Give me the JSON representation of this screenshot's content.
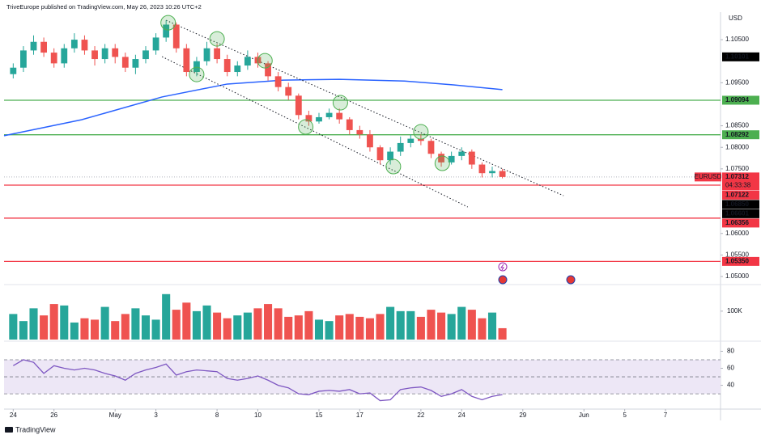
{
  "header": {
    "publisher": "TriveEurope published on TradingView.com, May 26, 2023 10:26 UTC+2",
    "currency": "USD",
    "brand": "TradingView"
  },
  "chart_data": [
    {
      "type": "candlestick",
      "symbol": "EURUSD",
      "up_color": "#26a69a",
      "down_color": "#ef5350",
      "x": [
        0,
        1,
        2,
        3,
        4,
        5,
        6,
        7,
        8,
        9,
        10,
        11,
        12,
        13,
        14,
        15,
        16,
        17,
        18,
        19,
        20,
        21,
        22,
        23,
        24,
        25,
        26,
        27,
        28,
        29,
        30,
        31,
        32,
        33,
        34,
        35,
        36,
        37,
        38,
        39,
        40,
        41,
        42,
        43,
        44,
        45,
        46,
        47,
        48
      ],
      "open": [
        1.097,
        1.0985,
        1.1025,
        1.1045,
        1.102,
        1.0995,
        1.103,
        1.105,
        1.1025,
        1.1005,
        1.103,
        1.101,
        1.0985,
        1.1005,
        1.1025,
        1.1055,
        1.1085,
        1.103,
        1.0975,
        1.1,
        1.103,
        1.1005,
        1.0975,
        1.099,
        1.101,
        1.0995,
        1.0965,
        1.094,
        1.092,
        1.0875,
        1.086,
        1.087,
        1.088,
        1.0865,
        1.084,
        1.083,
        1.08,
        1.077,
        1.079,
        1.081,
        1.082,
        1.0815,
        1.0785,
        1.0765,
        1.078,
        1.079,
        1.076,
        1.074,
        1.0745
      ],
      "high": [
        1.0995,
        1.1035,
        1.106,
        1.1055,
        1.103,
        1.104,
        1.1065,
        1.106,
        1.1035,
        1.104,
        1.104,
        1.102,
        1.1015,
        1.1035,
        1.1065,
        1.1095,
        1.109,
        1.104,
        1.101,
        1.1045,
        1.104,
        1.1015,
        1.1,
        1.1025,
        1.102,
        1.1,
        1.0975,
        1.095,
        1.0925,
        1.0885,
        1.088,
        1.089,
        1.089,
        1.087,
        1.085,
        1.084,
        1.0805,
        1.08,
        1.0825,
        1.083,
        1.083,
        1.082,
        1.079,
        1.079,
        1.08,
        1.0795,
        1.0765,
        1.0755,
        1.075
      ],
      "low": [
        1.096,
        1.0975,
        1.1015,
        1.101,
        1.0985,
        1.0985,
        1.102,
        1.1015,
        1.099,
        1.0995,
        1.0995,
        1.0975,
        1.097,
        1.0995,
        1.1015,
        1.1045,
        1.102,
        1.0965,
        1.0965,
        1.099,
        1.0995,
        1.0965,
        1.0965,
        1.098,
        1.0985,
        1.0955,
        1.093,
        1.091,
        1.0865,
        1.085,
        1.0855,
        1.0865,
        1.0855,
        1.083,
        1.082,
        1.079,
        1.076,
        1.076,
        1.078,
        1.08,
        1.0805,
        1.0775,
        1.0755,
        1.076,
        1.077,
        1.075,
        1.073,
        1.073,
        1.0728
      ],
      "close": [
        1.0985,
        1.1025,
        1.1045,
        1.102,
        1.0995,
        1.103,
        1.105,
        1.1025,
        1.1005,
        1.103,
        1.101,
        1.0985,
        1.1005,
        1.1025,
        1.1055,
        1.1085,
        1.103,
        1.0975,
        1.1,
        1.103,
        1.1005,
        1.0975,
        1.099,
        1.101,
        1.0995,
        1.0965,
        1.094,
        1.092,
        1.0875,
        1.086,
        1.087,
        1.088,
        1.0865,
        1.084,
        1.083,
        1.08,
        1.077,
        1.079,
        1.081,
        1.082,
        1.0815,
        1.0785,
        1.0765,
        1.078,
        1.079,
        1.076,
        1.074,
        1.0745,
        1.07312
      ],
      "xlim": [
        -0.9,
        69.4
      ],
      "ylim": [
        1.0485,
        1.1114
      ],
      "xticks": [
        {
          "value": 0,
          "label": "24"
        },
        {
          "value": 4,
          "label": "26"
        },
        {
          "value": 10,
          "label": "May"
        },
        {
          "value": 14,
          "label": "3"
        },
        {
          "value": 20,
          "label": "8"
        },
        {
          "value": 24,
          "label": "10"
        },
        {
          "value": 30,
          "label": "15"
        },
        {
          "value": 34,
          "label": "17"
        },
        {
          "value": 40,
          "label": "22"
        },
        {
          "value": 44,
          "label": "24"
        },
        {
          "value": 50,
          "label": "29"
        },
        {
          "value": 56,
          "label": "Jun"
        },
        {
          "value": 60,
          "label": "5"
        },
        {
          "value": 64,
          "label": "7"
        }
      ],
      "yticks": [
        {
          "value": 1.105,
          "label": "1.10500"
        },
        {
          "value": 1.095,
          "label": "1.09500"
        },
        {
          "value": 1.085,
          "label": "1.08500"
        },
        {
          "value": 1.08,
          "label": "1.08000"
        },
        {
          "value": 1.075,
          "label": "1.07500"
        },
        {
          "value": 1.06,
          "label": "1.06000"
        },
        {
          "value": 1.055,
          "label": "1.05500"
        },
        {
          "value": 1.05,
          "label": "1.05000"
        }
      ],
      "moving_average": {
        "color": "#2962ff",
        "x": [
          -0.9,
          6.7,
          14.6,
          21,
          26.5,
          32,
          38.4,
          43.2,
          48
        ],
        "values": [
          1.0827,
          1.0864,
          1.0917,
          1.0947,
          1.0956,
          1.0958,
          1.0954,
          1.0945,
          1.0934
        ]
      },
      "levels": [
        {
          "value": 1.09094,
          "label": "1.09094",
          "color": "#4caf50"
        },
        {
          "value": 1.08292,
          "label": "1.08292",
          "color": "#4caf50"
        },
        {
          "value": 1.07122,
          "label": "1.07122",
          "color": "#f23645"
        },
        {
          "value": 1.06356,
          "label": "1.06356",
          "color": "#f23645"
        },
        {
          "value": 1.0535,
          "label": "1.05350",
          "color": "#f23645"
        }
      ],
      "price_labels": [
        {
          "value": 1.10101,
          "label": "1.10101",
          "color": "#000000"
        },
        {
          "value": 1.0685,
          "label": "1.06850",
          "color": "#000000"
        },
        {
          "value": 1.06601,
          "label": "1.06601",
          "color": "#000000"
        }
      ],
      "last_price": {
        "value": 1.07312,
        "label": "1.07312",
        "countdown": "04:33:38",
        "color": "#f23645"
      },
      "channel": [
        {
          "x": [
            15,
            54
          ],
          "values": [
            1.1095,
            1.06877
          ]
        },
        {
          "x": [
            14.6,
            44.6
          ],
          "values": [
            1.10106,
            1.06614
          ]
        }
      ],
      "touch_points": {
        "color": "#4caf50",
        "x": [
          15.2,
          20,
          24.7,
          32.1,
          40,
          42.1,
          37.3,
          28.7,
          18
        ],
        "values": [
          1.10894,
          1.10519,
          1.10012,
          1.09036,
          1.0836,
          1.07628,
          1.07553,
          1.08473,
          1.09693
        ]
      }
    },
    {
      "type": "bar",
      "values": [
        90000,
        65000,
        110000,
        85000,
        125000,
        120000,
        60000,
        75000,
        70000,
        115000,
        65000,
        90000,
        110000,
        85000,
        70000,
        160000,
        105000,
        130000,
        100000,
        120000,
        95000,
        75000,
        85000,
        95000,
        110000,
        125000,
        110000,
        80000,
        85000,
        100000,
        70000,
        65000,
        85000,
        90000,
        80000,
        75000,
        90000,
        115000,
        100000,
        100000,
        80000,
        105000,
        95000,
        90000,
        115000,
        105000,
        75000,
        95000,
        40000
      ],
      "ylim": [
        0,
        185000
      ],
      "yticks": [
        {
          "value": 100000,
          "label": "100K"
        }
      ]
    },
    {
      "type": "line",
      "color": "#7e57c2",
      "values": [
        63,
        70,
        67,
        54,
        63,
        60,
        58,
        60,
        58,
        54,
        51,
        46,
        54,
        58,
        61,
        65,
        52,
        56,
        58,
        57,
        56,
        48,
        46,
        48,
        51,
        46,
        40,
        37,
        30,
        29,
        33,
        34,
        33,
        35,
        30,
        31,
        22,
        23,
        35,
        37,
        38,
        34,
        27,
        30,
        35,
        27,
        23,
        27,
        29
      ],
      "ylim": [
        13,
        89
      ],
      "yticks": [
        80,
        60,
        40
      ],
      "bands": [
        70,
        50,
        30
      ],
      "band_fill": "#ede7f6"
    }
  ]
}
